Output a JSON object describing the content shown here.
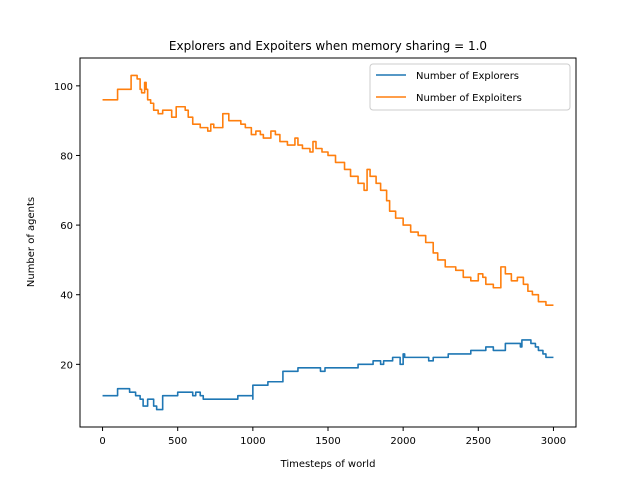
{
  "chart_data": {
    "type": "line",
    "title": "Explorers and Expoiters when memory sharing = 1.0",
    "xlabel": "Timesteps of world",
    "ylabel": "Number of agents",
    "xlim": [
      -150,
      3150
    ],
    "ylim": [
      2,
      108
    ],
    "xticks": [
      0,
      500,
      1000,
      1500,
      2000,
      2500,
      3000
    ],
    "yticks": [
      20,
      40,
      60,
      80,
      100
    ],
    "grid": false,
    "legend_position": "top-right",
    "series": [
      {
        "name": "Number of Explorers",
        "color": "#1f77b4",
        "points": [
          [
            0,
            11
          ],
          [
            100,
            11
          ],
          [
            100,
            13
          ],
          [
            180,
            13
          ],
          [
            180,
            12
          ],
          [
            220,
            12
          ],
          [
            220,
            11
          ],
          [
            250,
            11
          ],
          [
            250,
            10
          ],
          [
            270,
            10
          ],
          [
            270,
            8
          ],
          [
            300,
            8
          ],
          [
            300,
            10
          ],
          [
            340,
            10
          ],
          [
            340,
            8
          ],
          [
            360,
            8
          ],
          [
            360,
            7
          ],
          [
            400,
            7
          ],
          [
            400,
            11
          ],
          [
            500,
            11
          ],
          [
            500,
            12
          ],
          [
            600,
            12
          ],
          [
            600,
            11
          ],
          [
            620,
            11
          ],
          [
            620,
            12
          ],
          [
            650,
            12
          ],
          [
            650,
            11
          ],
          [
            670,
            11
          ],
          [
            670,
            10
          ],
          [
            900,
            10
          ],
          [
            900,
            11
          ],
          [
            1000,
            11
          ],
          [
            1000,
            10
          ],
          [
            1000,
            14
          ],
          [
            1100,
            14
          ],
          [
            1100,
            15
          ],
          [
            1200,
            15
          ],
          [
            1200,
            18
          ],
          [
            1300,
            18
          ],
          [
            1300,
            19
          ],
          [
            1450,
            19
          ],
          [
            1450,
            18
          ],
          [
            1480,
            18
          ],
          [
            1480,
            19
          ],
          [
            1700,
            19
          ],
          [
            1700,
            20
          ],
          [
            1800,
            20
          ],
          [
            1800,
            21
          ],
          [
            1850,
            21
          ],
          [
            1850,
            20
          ],
          [
            1870,
            20
          ],
          [
            1870,
            21
          ],
          [
            1930,
            21
          ],
          [
            1930,
            22
          ],
          [
            1980,
            22
          ],
          [
            1980,
            20
          ],
          [
            2000,
            20
          ],
          [
            2000,
            23
          ],
          [
            2010,
            23
          ],
          [
            2010,
            22
          ],
          [
            2170,
            22
          ],
          [
            2170,
            21
          ],
          [
            2200,
            21
          ],
          [
            2200,
            22
          ],
          [
            2300,
            22
          ],
          [
            2300,
            23
          ],
          [
            2450,
            23
          ],
          [
            2450,
            24
          ],
          [
            2550,
            24
          ],
          [
            2550,
            25
          ],
          [
            2600,
            25
          ],
          [
            2600,
            24
          ],
          [
            2680,
            24
          ],
          [
            2680,
            26
          ],
          [
            2780,
            26
          ],
          [
            2780,
            25
          ],
          [
            2790,
            25
          ],
          [
            2790,
            27
          ],
          [
            2850,
            27
          ],
          [
            2850,
            26
          ],
          [
            2880,
            26
          ],
          [
            2880,
            25
          ],
          [
            2900,
            25
          ],
          [
            2900,
            24
          ],
          [
            2930,
            24
          ],
          [
            2930,
            23
          ],
          [
            2950,
            23
          ],
          [
            2950,
            22
          ],
          [
            3000,
            22
          ]
        ]
      },
      {
        "name": "Number of Exploiters",
        "color": "#ff7f0e",
        "points": [
          [
            0,
            96
          ],
          [
            100,
            96
          ],
          [
            100,
            99
          ],
          [
            190,
            99
          ],
          [
            190,
            103
          ],
          [
            230,
            103
          ],
          [
            230,
            102
          ],
          [
            250,
            102
          ],
          [
            250,
            99
          ],
          [
            260,
            99
          ],
          [
            260,
            98
          ],
          [
            280,
            98
          ],
          [
            280,
            101
          ],
          [
            290,
            101
          ],
          [
            290,
            99
          ],
          [
            300,
            99
          ],
          [
            300,
            96
          ],
          [
            320,
            96
          ],
          [
            320,
            95
          ],
          [
            340,
            95
          ],
          [
            340,
            93
          ],
          [
            370,
            93
          ],
          [
            370,
            92
          ],
          [
            400,
            92
          ],
          [
            400,
            93
          ],
          [
            460,
            93
          ],
          [
            460,
            91
          ],
          [
            490,
            91
          ],
          [
            490,
            94
          ],
          [
            550,
            94
          ],
          [
            550,
            93
          ],
          [
            570,
            93
          ],
          [
            570,
            91
          ],
          [
            600,
            91
          ],
          [
            600,
            89
          ],
          [
            650,
            89
          ],
          [
            650,
            88
          ],
          [
            700,
            88
          ],
          [
            700,
            87
          ],
          [
            720,
            87
          ],
          [
            720,
            89
          ],
          [
            740,
            89
          ],
          [
            740,
            88
          ],
          [
            800,
            88
          ],
          [
            800,
            92
          ],
          [
            840,
            92
          ],
          [
            840,
            90
          ],
          [
            920,
            90
          ],
          [
            920,
            89
          ],
          [
            950,
            89
          ],
          [
            950,
            88
          ],
          [
            990,
            88
          ],
          [
            990,
            86
          ],
          [
            1020,
            86
          ],
          [
            1020,
            87
          ],
          [
            1050,
            87
          ],
          [
            1050,
            86
          ],
          [
            1070,
            86
          ],
          [
            1070,
            85
          ],
          [
            1120,
            85
          ],
          [
            1120,
            87
          ],
          [
            1150,
            87
          ],
          [
            1150,
            86
          ],
          [
            1180,
            86
          ],
          [
            1180,
            84
          ],
          [
            1230,
            84
          ],
          [
            1230,
            83
          ],
          [
            1280,
            83
          ],
          [
            1280,
            85
          ],
          [
            1300,
            85
          ],
          [
            1300,
            83
          ],
          [
            1330,
            83
          ],
          [
            1330,
            82
          ],
          [
            1380,
            82
          ],
          [
            1380,
            81
          ],
          [
            1400,
            81
          ],
          [
            1400,
            84
          ],
          [
            1420,
            84
          ],
          [
            1420,
            82
          ],
          [
            1460,
            82
          ],
          [
            1460,
            81
          ],
          [
            1500,
            81
          ],
          [
            1500,
            80
          ],
          [
            1550,
            80
          ],
          [
            1550,
            78
          ],
          [
            1610,
            78
          ],
          [
            1610,
            76
          ],
          [
            1650,
            76
          ],
          [
            1650,
            74
          ],
          [
            1700,
            74
          ],
          [
            1700,
            72
          ],
          [
            1740,
            72
          ],
          [
            1740,
            70
          ],
          [
            1760,
            70
          ],
          [
            1760,
            76
          ],
          [
            1780,
            76
          ],
          [
            1780,
            74
          ],
          [
            1820,
            74
          ],
          [
            1820,
            72
          ],
          [
            1850,
            72
          ],
          [
            1850,
            70
          ],
          [
            1890,
            70
          ],
          [
            1890,
            67
          ],
          [
            1910,
            67
          ],
          [
            1910,
            64
          ],
          [
            1950,
            64
          ],
          [
            1950,
            62
          ],
          [
            2000,
            62
          ],
          [
            2000,
            60
          ],
          [
            2050,
            60
          ],
          [
            2050,
            58
          ],
          [
            2100,
            58
          ],
          [
            2100,
            57
          ],
          [
            2150,
            57
          ],
          [
            2150,
            55
          ],
          [
            2200,
            55
          ],
          [
            2200,
            52
          ],
          [
            2230,
            52
          ],
          [
            2230,
            50
          ],
          [
            2280,
            50
          ],
          [
            2280,
            48
          ],
          [
            2350,
            48
          ],
          [
            2350,
            47
          ],
          [
            2400,
            47
          ],
          [
            2400,
            45
          ],
          [
            2450,
            45
          ],
          [
            2450,
            44
          ],
          [
            2500,
            44
          ],
          [
            2500,
            46
          ],
          [
            2530,
            46
          ],
          [
            2530,
            45
          ],
          [
            2550,
            45
          ],
          [
            2550,
            43
          ],
          [
            2600,
            43
          ],
          [
            2600,
            42
          ],
          [
            2650,
            42
          ],
          [
            2650,
            48
          ],
          [
            2680,
            48
          ],
          [
            2680,
            46
          ],
          [
            2720,
            46
          ],
          [
            2720,
            44
          ],
          [
            2760,
            44
          ],
          [
            2760,
            45
          ],
          [
            2800,
            45
          ],
          [
            2800,
            43
          ],
          [
            2830,
            43
          ],
          [
            2830,
            41
          ],
          [
            2860,
            41
          ],
          [
            2860,
            40
          ],
          [
            2900,
            40
          ],
          [
            2900,
            38
          ],
          [
            2950,
            38
          ],
          [
            2950,
            37
          ],
          [
            3000,
            37
          ]
        ]
      }
    ]
  }
}
